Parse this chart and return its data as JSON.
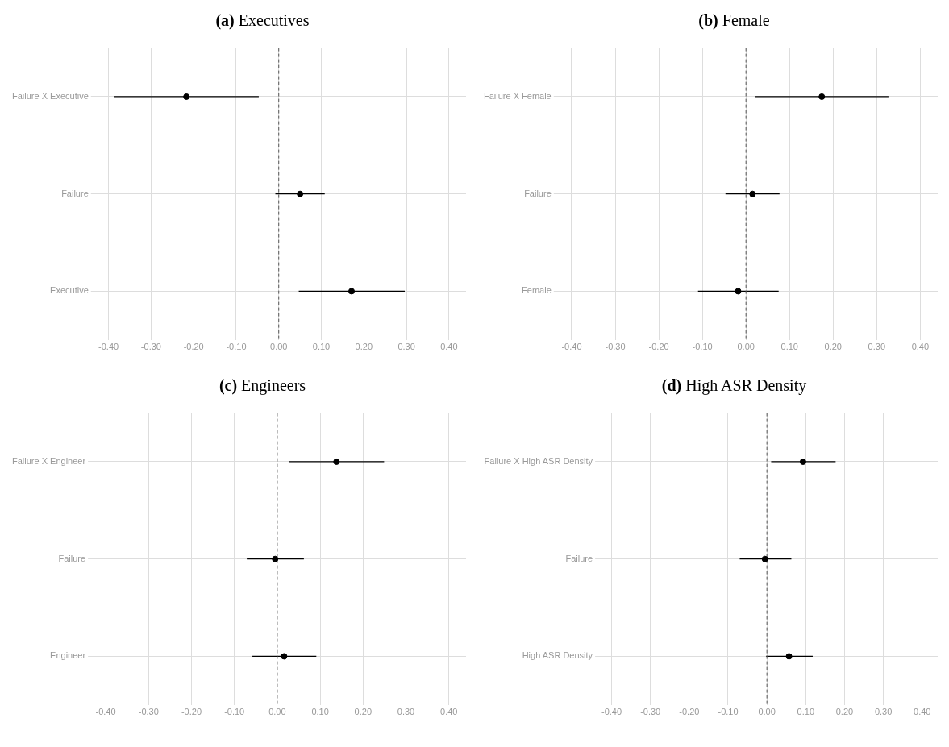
{
  "chart_data": [
    {
      "type": "scatter",
      "title": "(a) Executives",
      "orientation": "horizontal",
      "categories": [
        "Failure X Executive",
        "Failure",
        "Executive"
      ],
      "series": [
        {
          "color": "#000000",
          "values": [
            -0.217,
            0.05,
            0.171
          ],
          "errors": [
            [
              -0.387,
              -0.047
            ],
            [
              -0.008,
              0.108
            ],
            [
              0.047,
              0.296
            ]
          ]
        }
      ],
      "xlim": [
        -0.43,
        0.44
      ],
      "xticks": [
        {
          "value": -0.4,
          "label": "-0.40"
        },
        {
          "value": -0.3,
          "label": "-0.30"
        },
        {
          "value": -0.2,
          "label": "-0.20"
        },
        {
          "value": -0.1,
          "label": "-0.10"
        },
        {
          "value": 0,
          "label": "0.00"
        },
        {
          "value": 0.1,
          "label": "0.10"
        },
        {
          "value": 0.2,
          "label": "0.20"
        },
        {
          "value": 0.3,
          "label": "0.30"
        },
        {
          "value": 0.4,
          "label": "0.40"
        }
      ],
      "ref_lines": [
        {
          "axis": "x",
          "value": 0,
          "line_style": "dashed",
          "color": "#555555"
        }
      ],
      "grid": true,
      "marker": "circle"
    },
    {
      "type": "scatter",
      "title": "(b) Female",
      "orientation": "horizontal",
      "categories": [
        "Failure X Female",
        "Failure",
        "Female"
      ],
      "series": [
        {
          "color": "#000000",
          "values": [
            0.174,
            0.015,
            -0.018
          ],
          "errors": [
            [
              0.021,
              0.327
            ],
            [
              -0.047,
              0.077
            ],
            [
              -0.11,
              0.075
            ]
          ]
        }
      ],
      "xlim": [
        -0.43,
        0.44
      ],
      "xticks": [
        {
          "value": -0.4,
          "label": "-0.40"
        },
        {
          "value": -0.3,
          "label": "-0.30"
        },
        {
          "value": -0.2,
          "label": "-0.20"
        },
        {
          "value": -0.1,
          "label": "-0.10"
        },
        {
          "value": 0,
          "label": "0.00"
        },
        {
          "value": 0.1,
          "label": "0.10"
        },
        {
          "value": 0.2,
          "label": "0.20"
        },
        {
          "value": 0.3,
          "label": "0.30"
        },
        {
          "value": 0.4,
          "label": "0.40"
        }
      ],
      "ref_lines": [
        {
          "axis": "x",
          "value": 0,
          "line_style": "dashed",
          "color": "#555555"
        }
      ],
      "grid": true,
      "marker": "circle"
    },
    {
      "type": "scatter",
      "title": "(c) Engineers",
      "orientation": "horizontal",
      "categories": [
        "Failure X Engineer",
        "Failure",
        "Engineer"
      ],
      "series": [
        {
          "color": "#000000",
          "values": [
            0.138,
            -0.005,
            0.016
          ],
          "errors": [
            [
              0.028,
              0.249
            ],
            [
              -0.071,
              0.062
            ],
            [
              -0.058,
              0.091
            ]
          ]
        }
      ],
      "xlim": [
        -0.43,
        0.44
      ],
      "xticks": [
        {
          "value": -0.4,
          "label": "-0.40"
        },
        {
          "value": -0.3,
          "label": "-0.30"
        },
        {
          "value": -0.2,
          "label": "-0.20"
        },
        {
          "value": -0.1,
          "label": "-0.10"
        },
        {
          "value": 0,
          "label": "0.00"
        },
        {
          "value": 0.1,
          "label": "0.10"
        },
        {
          "value": 0.2,
          "label": "0.20"
        },
        {
          "value": 0.3,
          "label": "0.30"
        },
        {
          "value": 0.4,
          "label": "0.40"
        }
      ],
      "ref_lines": [
        {
          "axis": "x",
          "value": 0,
          "line_style": "dashed",
          "color": "#555555"
        }
      ],
      "grid": true,
      "marker": "circle"
    },
    {
      "type": "scatter",
      "title": "(d) High ASR Density",
      "orientation": "horizontal",
      "categories": [
        "Failure X High ASR Density",
        "Failure",
        "High ASR Density"
      ],
      "series": [
        {
          "color": "#000000",
          "values": [
            0.093,
            -0.005,
            0.057
          ],
          "errors": [
            [
              0.011,
              0.177
            ],
            [
              -0.07,
              0.063
            ],
            [
              -0.002,
              0.118
            ]
          ]
        }
      ],
      "xlim": [
        -0.43,
        0.44
      ],
      "xticks": [
        {
          "value": -0.4,
          "label": "-0.40"
        },
        {
          "value": -0.3,
          "label": "-0.30"
        },
        {
          "value": -0.2,
          "label": "-0.20"
        },
        {
          "value": -0.1,
          "label": "-0.10"
        },
        {
          "value": 0,
          "label": "0.00"
        },
        {
          "value": 0.1,
          "label": "0.10"
        },
        {
          "value": 0.2,
          "label": "0.20"
        },
        {
          "value": 0.3,
          "label": "0.30"
        },
        {
          "value": 0.4,
          "label": "0.40"
        }
      ],
      "ref_lines": [
        {
          "axis": "x",
          "value": 0,
          "line_style": "dashed",
          "color": "#555555"
        }
      ],
      "grid": true,
      "marker": "circle"
    }
  ]
}
